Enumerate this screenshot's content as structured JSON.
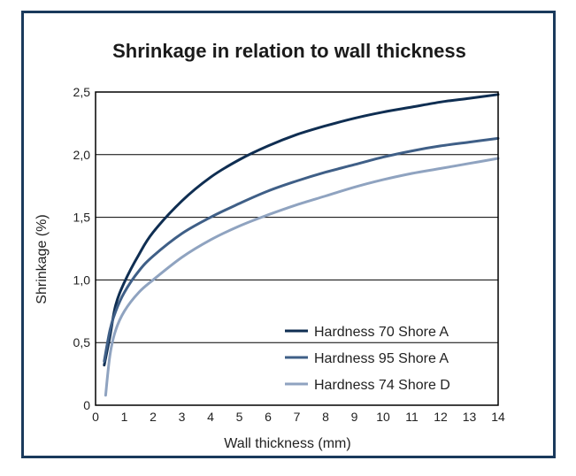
{
  "chart_data": {
    "type": "line",
    "title": "Shrinkage in relation to wall thickness",
    "xlabel": "Wall thickness (mm)",
    "ylabel": "Shrinkage (%)",
    "xlim": [
      0,
      14
    ],
    "ylim": [
      0,
      2.5
    ],
    "xticks": [
      "0",
      "1",
      "2",
      "3",
      "4",
      "5",
      "6",
      "7",
      "8",
      "9",
      "10",
      "11",
      "12",
      "13",
      "14"
    ],
    "yticks": [
      "0",
      "0,5",
      "1,0",
      "1,5",
      "2,0",
      "2,5"
    ],
    "grid": "horizontal",
    "legend_position": "bottom-right",
    "series": [
      {
        "name": "Hardness 70 Shore A",
        "color": "#0f2e52",
        "x": [
          0.3,
          0.5,
          0.7,
          1,
          1.5,
          2,
          3,
          4,
          5,
          6,
          7,
          8,
          9,
          10,
          11,
          12,
          13,
          14
        ],
        "y": [
          0.32,
          0.55,
          0.8,
          0.98,
          1.2,
          1.38,
          1.63,
          1.82,
          1.96,
          2.07,
          2.16,
          2.23,
          2.29,
          2.34,
          2.38,
          2.42,
          2.45,
          2.48
        ]
      },
      {
        "name": "Hardness 95 Shore A",
        "color": "#3f5f87",
        "x": [
          0.3,
          0.5,
          0.7,
          1,
          1.5,
          2,
          3,
          4,
          5,
          6,
          7,
          8,
          9,
          10,
          11,
          12,
          13,
          14
        ],
        "y": [
          0.35,
          0.6,
          0.75,
          0.9,
          1.07,
          1.19,
          1.37,
          1.5,
          1.61,
          1.71,
          1.79,
          1.86,
          1.92,
          1.98,
          2.03,
          2.07,
          2.1,
          2.13
        ]
      },
      {
        "name": "Hardness 74 Shore D",
        "color": "#8fa3c0",
        "x": [
          0.35,
          0.5,
          0.7,
          1,
          1.5,
          2,
          3,
          4,
          5,
          6,
          7,
          8,
          9,
          10,
          11,
          12,
          13,
          14
        ],
        "y": [
          0.08,
          0.4,
          0.6,
          0.75,
          0.9,
          1.0,
          1.18,
          1.32,
          1.43,
          1.52,
          1.6,
          1.67,
          1.74,
          1.8,
          1.85,
          1.89,
          1.93,
          1.97
        ]
      }
    ]
  }
}
